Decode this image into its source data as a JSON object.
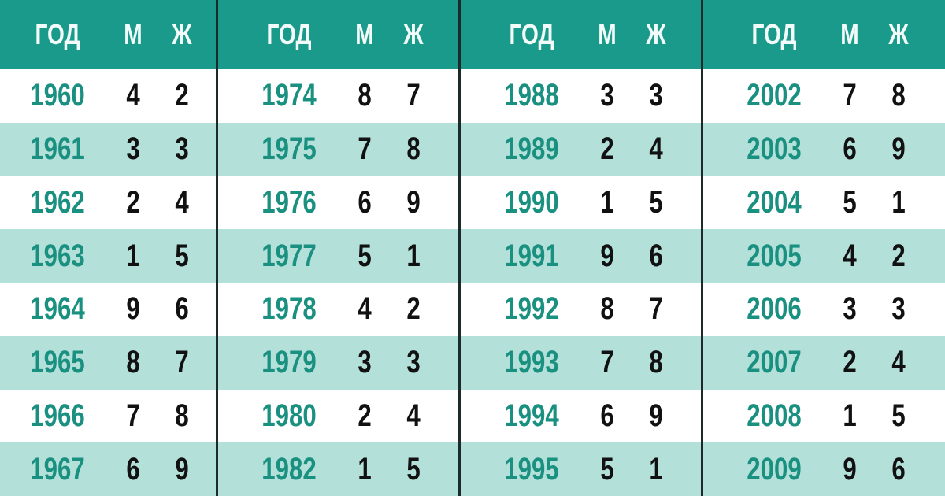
{
  "headers": {
    "year": "ГОД",
    "male": "М",
    "female": "Ж"
  },
  "colors": {
    "header_bg": "#1a9a8a",
    "alt_row": "#b4e0da",
    "year_text": "#1a9080",
    "divider": "#1c2a2a"
  },
  "groups": [
    {
      "rows": [
        [
          "1960",
          "4",
          "2"
        ],
        [
          "1961",
          "3",
          "3"
        ],
        [
          "1962",
          "2",
          "4"
        ],
        [
          "1963",
          "1",
          "5"
        ],
        [
          "1964",
          "9",
          "6"
        ],
        [
          "1965",
          "8",
          "7"
        ],
        [
          "1966",
          "7",
          "8"
        ],
        [
          "1967",
          "6",
          "9"
        ]
      ]
    },
    {
      "rows": [
        [
          "1974",
          "8",
          "7"
        ],
        [
          "1975",
          "7",
          "8"
        ],
        [
          "1976",
          "6",
          "9"
        ],
        [
          "1977",
          "5",
          "1"
        ],
        [
          "1978",
          "4",
          "2"
        ],
        [
          "1979",
          "3",
          "3"
        ],
        [
          "1980",
          "2",
          "4"
        ],
        [
          "1982",
          "1",
          "5"
        ]
      ]
    },
    {
      "rows": [
        [
          "1988",
          "3",
          "3"
        ],
        [
          "1989",
          "2",
          "4"
        ],
        [
          "1990",
          "1",
          "5"
        ],
        [
          "1991",
          "9",
          "6"
        ],
        [
          "1992",
          "8",
          "7"
        ],
        [
          "1993",
          "7",
          "8"
        ],
        [
          "1994",
          "6",
          "9"
        ],
        [
          "1995",
          "5",
          "1"
        ]
      ]
    },
    {
      "rows": [
        [
          "2002",
          "7",
          "8"
        ],
        [
          "2003",
          "6",
          "9"
        ],
        [
          "2004",
          "5",
          "1"
        ],
        [
          "2005",
          "4",
          "2"
        ],
        [
          "2006",
          "3",
          "3"
        ],
        [
          "2007",
          "2",
          "4"
        ],
        [
          "2008",
          "1",
          "5"
        ],
        [
          "2009",
          "9",
          "6"
        ]
      ]
    }
  ]
}
